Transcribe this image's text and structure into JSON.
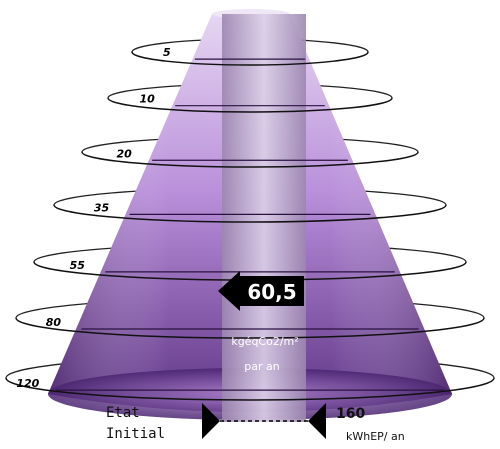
{
  "levels": [
    "5",
    "10",
    "20",
    "35",
    "55",
    "80",
    "120"
  ],
  "current": {
    "value": "60,5",
    "unit_line1": "kgéqCo2/m²",
    "unit_line2": "par an"
  },
  "initial": {
    "label_line1": "Etat",
    "label_line2": "Initial",
    "value": "160",
    "unit": "kWhEP/ an"
  },
  "colors": {
    "cone_light": "#d6b8ec",
    "cone_dark": "#6a3f8f",
    "column": "#c6b2d9",
    "arrow": "#000000"
  }
}
